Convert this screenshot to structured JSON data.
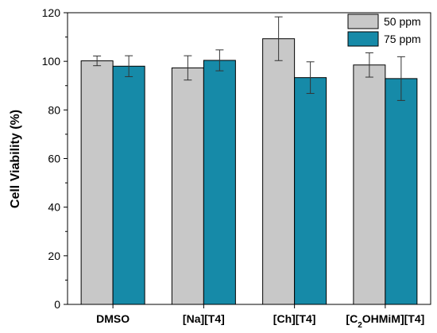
{
  "chart_data": {
    "type": "bar",
    "categories": [
      "DMSO",
      "[Na][T4]",
      "[Ch][T4]",
      "[C2OHMiM][T4]"
    ],
    "series": [
      {
        "name": "50 ppm",
        "color": "#c8c8c8",
        "values": [
          100.2,
          97.3,
          109.3,
          98.5
        ],
        "errors": [
          2.0,
          5.0,
          9.0,
          5.0
        ]
      },
      {
        "name": "75 ppm",
        "color": "#168aa8",
        "values": [
          98.0,
          100.4,
          93.3,
          92.9
        ],
        "errors": [
          4.3,
          4.3,
          6.5,
          9.0
        ]
      }
    ],
    "xlabel": "",
    "ylabel": "Cell Viability (%)",
    "ylim": [
      0,
      120
    ],
    "yticks": [
      0,
      20,
      40,
      60,
      80,
      100,
      120
    ],
    "grid": false,
    "legend_position": "top-right"
  }
}
